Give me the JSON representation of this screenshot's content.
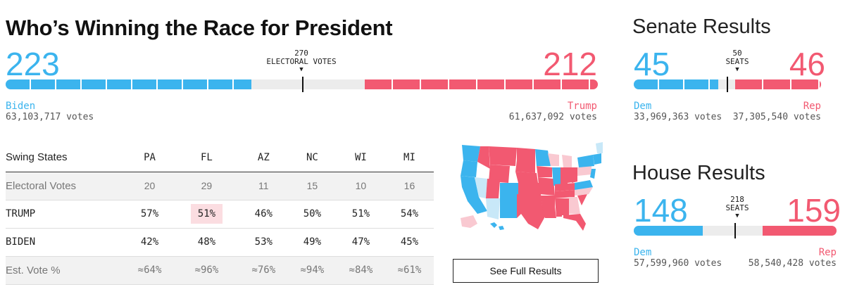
{
  "title": "Who’s Winning the Race for President",
  "president": {
    "dem_count": "223",
    "rep_count": "212",
    "threshold_number": "270",
    "threshold_unit": "ELECTORAL VOTES",
    "dem_name": "Biden",
    "rep_name": "Trump",
    "dem_votes": "63,103,717 votes",
    "rep_votes": "61,637,092 votes",
    "total": 538,
    "dem_value": 223,
    "rep_value": 212,
    "threshold_value": 270
  },
  "swing_table": {
    "header_label": "Swing States",
    "states": [
      "PA",
      "FL",
      "AZ",
      "NC",
      "WI",
      "MI"
    ],
    "rows": [
      {
        "label": "Electoral Votes",
        "values": [
          "20",
          "29",
          "11",
          "15",
          "10",
          "16"
        ]
      },
      {
        "label": "TRUMP",
        "values": [
          "57%",
          "51%",
          "46%",
          "50%",
          "51%",
          "54%"
        ]
      },
      {
        "label": "BIDEN",
        "values": [
          "42%",
          "48%",
          "53%",
          "49%",
          "47%",
          "45%"
        ]
      },
      {
        "label": "Est. Vote %",
        "values": [
          "≈64%",
          "≈96%",
          "≈76%",
          "≈94%",
          "≈84%",
          "≈61%"
        ]
      }
    ]
  },
  "see_full_results": "See Full Results",
  "senate": {
    "title": "Senate Results",
    "dem_count": "45",
    "rep_count": "46",
    "threshold_number": "50",
    "threshold_unit": "SEATS",
    "dem_name": "Dem",
    "rep_name": "Rep",
    "dem_votes": "33,969,363 votes",
    "rep_votes": "37,305,540 votes",
    "total": 100,
    "dem_value": 45,
    "rep_value": 46,
    "threshold_value": 50
  },
  "house": {
    "title": "House Results",
    "dem_count": "148",
    "rep_count": "159",
    "threshold_number": "218",
    "threshold_unit": "SEATS",
    "dem_name": "Dem",
    "rep_name": "Rep",
    "dem_votes": "57,599,960 votes",
    "rep_votes": "58,540,428 votes",
    "total": 435,
    "dem_value": 148,
    "rep_value": 159,
    "threshold_value": 218
  },
  "colors": {
    "dem": "#3bb4ee",
    "rep": "#f25971",
    "dem_light": "#c8e8f8",
    "rep_light": "#f9c9d1",
    "track": "#ececec"
  }
}
